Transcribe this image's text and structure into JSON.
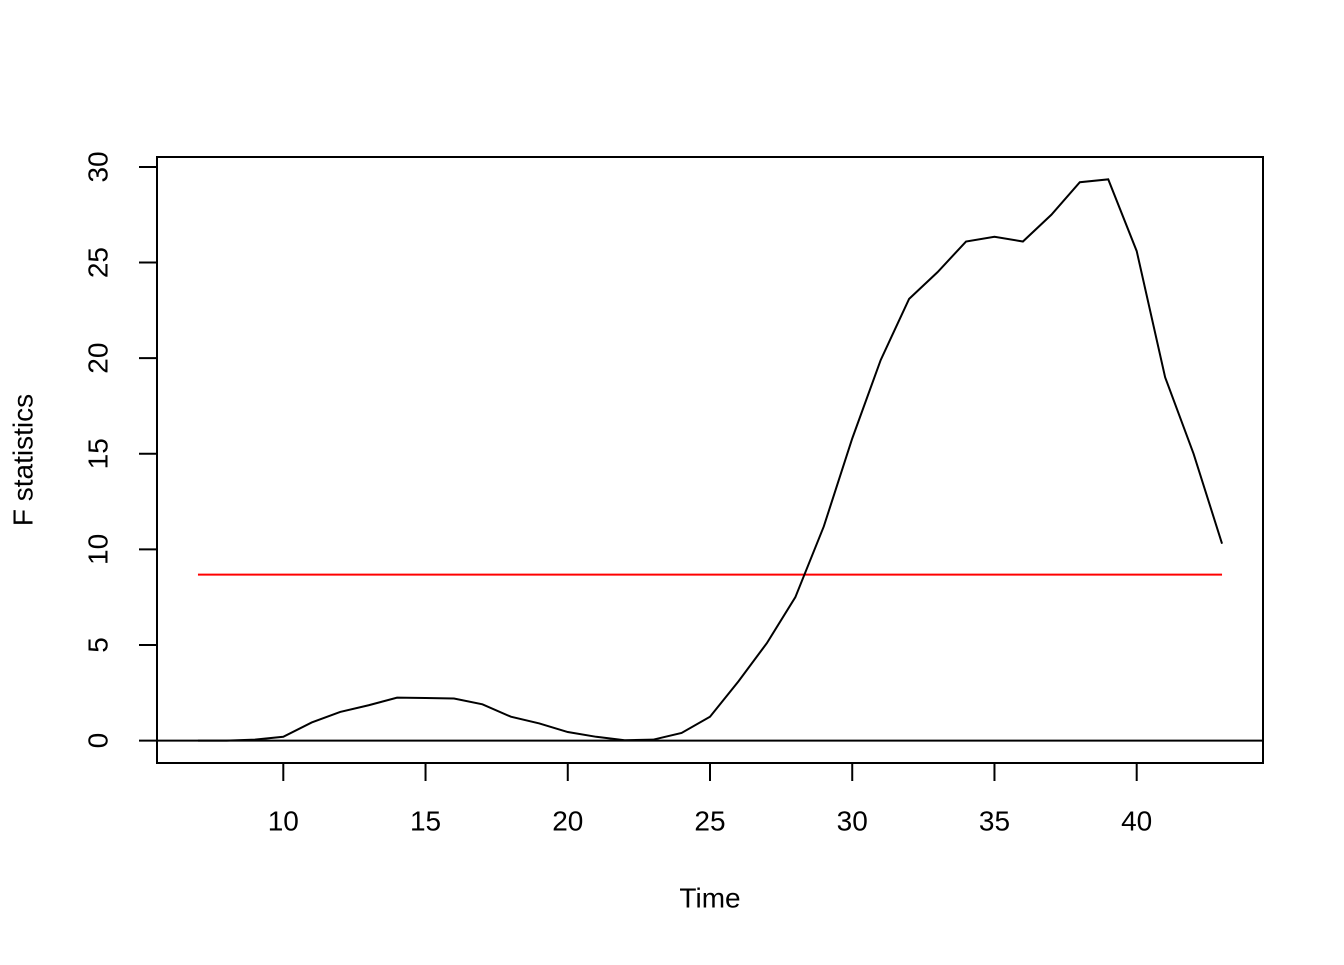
{
  "chart_data": {
    "type": "line",
    "xlabel": "Time",
    "ylabel": "F statistics",
    "x": [
      7,
      8,
      9,
      10,
      11,
      12,
      13,
      14,
      15,
      16,
      17,
      18,
      19,
      20,
      21,
      22,
      23,
      24,
      25,
      26,
      27,
      28,
      29,
      30,
      31,
      32,
      33,
      34,
      35,
      36,
      37,
      38,
      39,
      40,
      41,
      42,
      43
    ],
    "values": [
      0,
      0,
      0.05,
      0.2,
      0.95,
      1.5,
      1.85,
      2.25,
      2.23,
      2.2,
      1.9,
      1.25,
      0.9,
      0.45,
      0.2,
      0.02,
      0.05,
      0.4,
      1.25,
      3.1,
      5.1,
      7.5,
      11.2,
      15.8,
      19.9,
      23.1,
      24.5,
      26.1,
      26.35,
      26.1,
      27.5,
      29.2,
      29.35,
      25.6,
      19.0,
      15.0,
      10.3
    ],
    "color": "#000000",
    "boundary": {
      "value": 8.68,
      "color": "#ff0000"
    },
    "reference_line": 0,
    "xlim": [
      5.56,
      44.44
    ],
    "ylim": [
      -1.17,
      30.52
    ],
    "xticks": [
      10,
      15,
      20,
      25,
      30,
      35,
      40
    ],
    "yticks": [
      0,
      5,
      10,
      15,
      20,
      25,
      30
    ]
  }
}
